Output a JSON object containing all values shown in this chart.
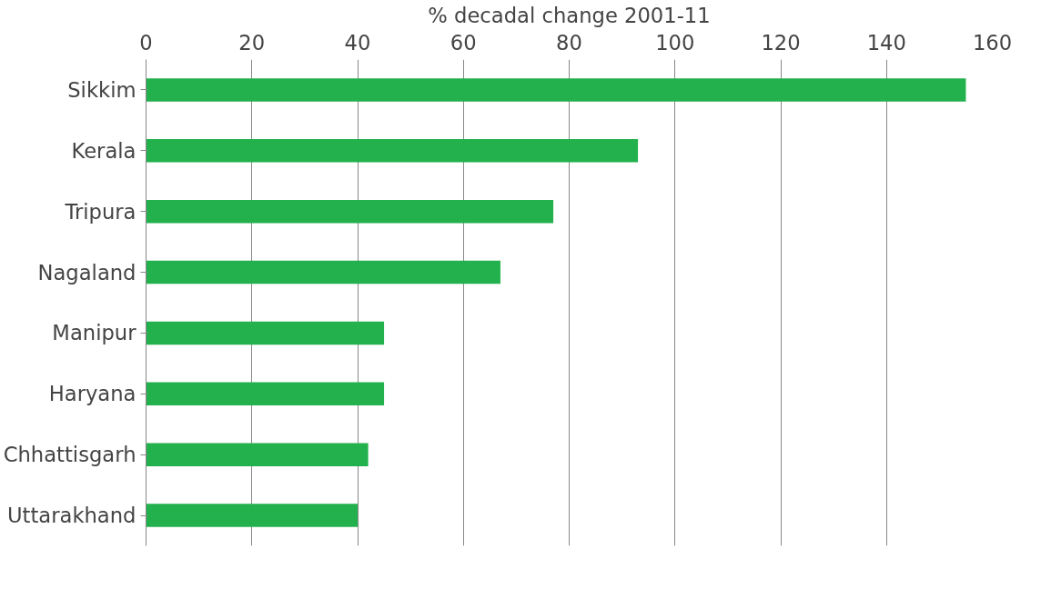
{
  "chart_data": {
    "type": "bar",
    "orientation": "horizontal",
    "xlabel": "% decadal change 2001-11",
    "categories": [
      "Sikkim",
      "Kerala",
      "Tripura",
      "Nagaland",
      "Manipur",
      "Haryana",
      "Chhattisgarh",
      "Uttarakhand"
    ],
    "values": [
      155,
      93,
      77,
      67,
      45,
      45,
      42,
      40
    ],
    "color": "#22b14c",
    "xlim": [
      0,
      160
    ],
    "xticks": [
      0,
      20,
      40,
      60,
      80,
      100,
      120,
      140,
      160
    ],
    "grid": "x"
  }
}
